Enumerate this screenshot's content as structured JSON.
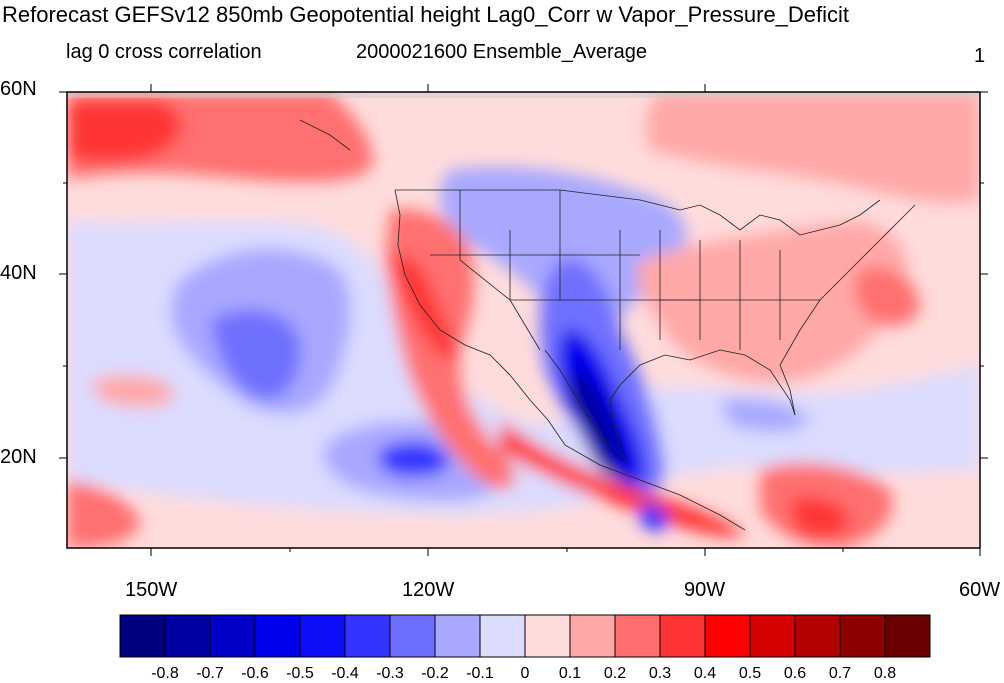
{
  "header": {
    "title": "Reforecast GEFSv12 850mb Geopotential height Lag0_Corr w Vapor_Pressure_Deficit",
    "subtitle_left": "lag 0 cross correlation",
    "subtitle_center": "2000021600 Ensemble_Average",
    "subtitle_right": "1"
  },
  "map": {
    "lat_labels": [
      "60N",
      "40N",
      "20N"
    ],
    "lon_labels": [
      "150W",
      "120W",
      "90W",
      "60W"
    ]
  },
  "colorbar": {
    "labels": [
      "-0.8",
      "-0.7",
      "-0.6",
      "-0.5",
      "-0.4",
      "-0.3",
      "-0.2",
      "-0.1",
      "0",
      "0.1",
      "0.2",
      "0.3",
      "0.4",
      "0.5",
      "0.6",
      "0.7",
      "0.8"
    ],
    "colors": [
      "#00007f",
      "#0000a3",
      "#0000c8",
      "#0000ee",
      "#0f0ff7",
      "#3434ff",
      "#6f6fff",
      "#a8a8ff",
      "#dcdcff",
      "#ffdcdc",
      "#ffa8a8",
      "#ff6f6f",
      "#ff3434",
      "#ff0000",
      "#d70000",
      "#b30000",
      "#8f0000",
      "#6b0000"
    ]
  }
}
